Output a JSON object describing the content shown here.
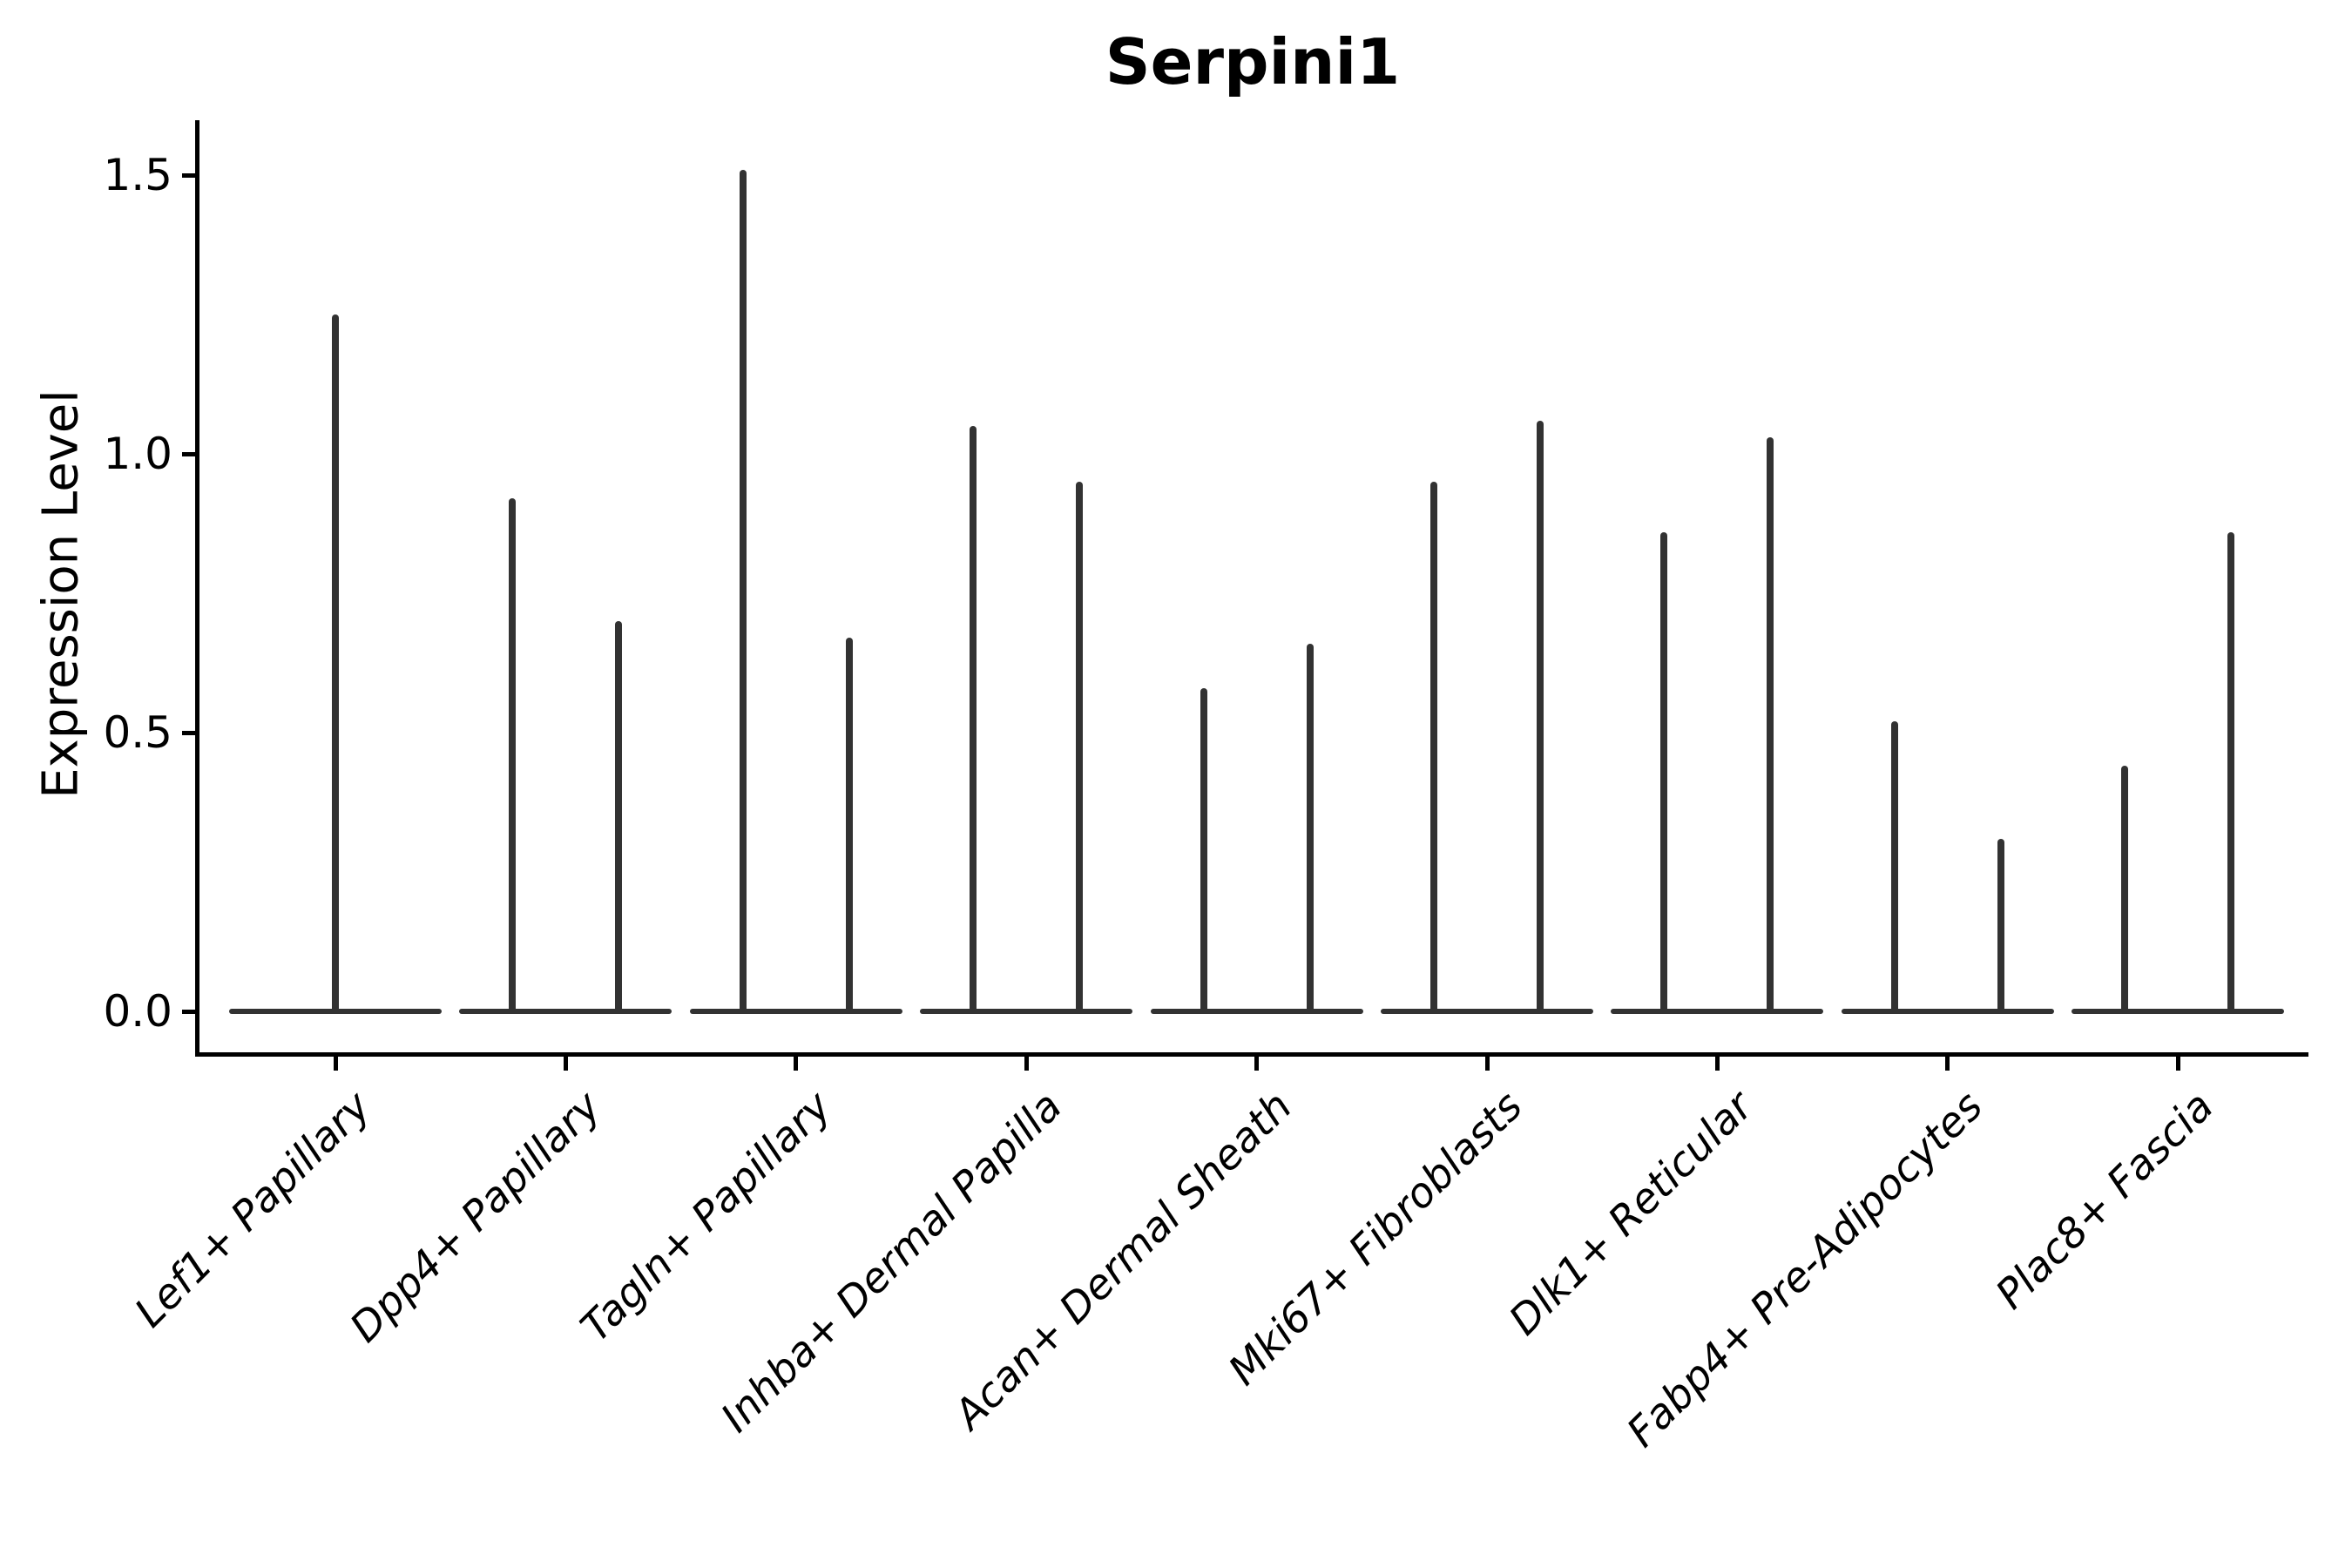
{
  "figure": {
    "title": "Serpini1"
  },
  "axes": {
    "y": {
      "label": "Expression Level",
      "tick_labels": [
        "0.0",
        "0.5",
        "1.0",
        "1.5"
      ],
      "tick_values": [
        0,
        0.5,
        1.0,
        1.5
      ],
      "range": [
        0,
        1.6
      ]
    },
    "x": {
      "categories": [
        "Lef1+ Papillary",
        "Dpp4+ Papillary",
        "Tagln+ Papillary",
        "Inhba+ Dermal Papilla",
        "Acan+ Dermal Sheath",
        "Mki67+ Fibroblasts",
        "Dlk1+ Reticular",
        "Fabp4+ Pre-Adipocytes",
        "Plac8+ Fascia"
      ]
    }
  },
  "chart_data": {
    "type": "violin",
    "title": "Serpini1",
    "xlabel": "",
    "ylabel": "Expression Level",
    "ylim": [
      0,
      1.6
    ],
    "yticks": [
      0,
      0.5,
      1.0,
      1.5
    ],
    "grid": false,
    "legend_position": "none",
    "categories": [
      "Lef1+ Papillary",
      "Dpp4+ Papillary",
      "Tagln+ Papillary",
      "Inhba+ Dermal Papilla",
      "Acan+ Dermal Sheath",
      "Mki67+ Fibroblasts",
      "Dlk1+ Reticular",
      "Fabp4+ Pre-Adipocytes",
      "Plac8+ Fascia"
    ],
    "violins": [
      {
        "category": "Lef1+ Papillary",
        "peaks": [
          1.25
        ]
      },
      {
        "category": "Dpp4+ Papillary",
        "peaks": [
          0.92,
          0.7
        ]
      },
      {
        "category": "Tagln+ Papillary",
        "peaks": [
          1.51,
          0.67
        ]
      },
      {
        "category": "Inhba+ Dermal Papilla",
        "peaks": [
          1.05,
          0.95
        ]
      },
      {
        "category": "Acan+ Dermal Sheath",
        "peaks": [
          0.58,
          0.66
        ]
      },
      {
        "category": "Mki67+ Fibroblasts",
        "peaks": [
          0.95,
          1.06
        ]
      },
      {
        "category": "Dlk1+ Reticular",
        "peaks": [
          0.86,
          1.03
        ]
      },
      {
        "category": "Fabp4+ Pre-Adipocytes",
        "peaks": [
          0.52,
          0.31
        ]
      },
      {
        "category": "Plac8+ Fascia",
        "peaks": [
          0.44,
          0.86
        ]
      }
    ],
    "shape_note": "Each violin collapses to a wide flat base at expression 0 with a thin vertical spike rising to its peak value; first category has one centered violin, all others have two violins per category."
  },
  "style": {
    "background": "#ffffff",
    "violin_line_color": "#323232",
    "spine_color": "#000000",
    "text_color": "#000000"
  }
}
